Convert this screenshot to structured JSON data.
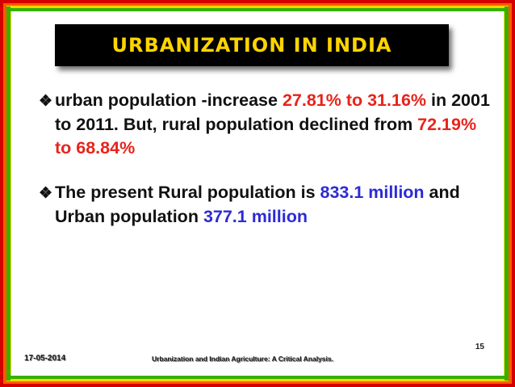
{
  "slide": {
    "title": "URBANIZATION IN INDIA",
    "bullet_icon": "checkmark-arrow-icon",
    "bullet_glyph": "❖",
    "bullets": [
      {
        "parts": [
          {
            "text": "urban population -increase ",
            "color": "#111111"
          },
          {
            "text": "27.81% to 31.16%",
            "color": "#e8231b"
          },
          {
            "text": " in 2001 to 2011. But, rural population declined from ",
            "color": "#111111"
          },
          {
            "text": "72.19% to 68.84%",
            "color": "#e8231b"
          }
        ]
      },
      {
        "parts": [
          {
            "text": "The present Rural population is ",
            "color": "#111111"
          },
          {
            "text": "833.1 million",
            "color": "#2b2bd6"
          },
          {
            "text": " and Urban population ",
            "color": "#111111"
          },
          {
            "text": "377.1 million",
            "color": "#2b2bd6"
          }
        ]
      }
    ],
    "footer": {
      "date": "17-05-2014",
      "title": "Urbanization and Indian Agriculture: A Critical Analysis.",
      "page": "15"
    },
    "colors": {
      "title_bg": "#000000",
      "title_text": "#ffd400",
      "highlight_red": "#e8231b",
      "highlight_blue": "#2b2bd6",
      "border_red": "#d40000",
      "border_orange": "#ff5a00",
      "border_yellow": "#ffd400",
      "border_green": "#36b000"
    }
  }
}
